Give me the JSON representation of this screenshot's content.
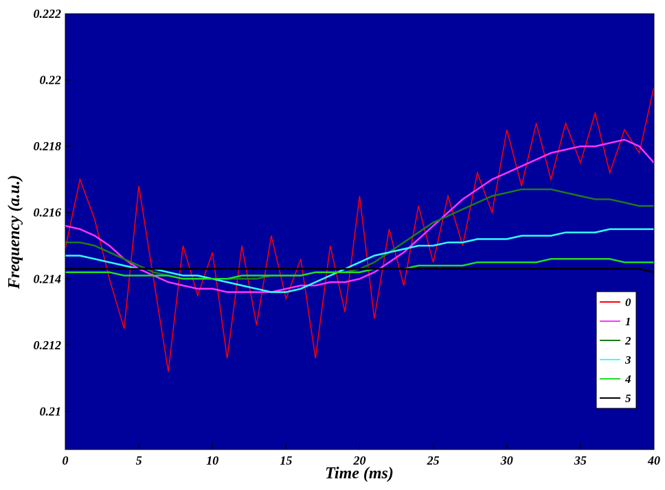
{
  "chart_data": {
    "type": "line",
    "xlabel": "Time (ms)",
    "ylabel": "Frequency (a.u.)",
    "x": [
      0,
      1,
      2,
      3,
      4,
      5,
      6,
      7,
      8,
      9,
      10,
      11,
      12,
      13,
      14,
      15,
      16,
      17,
      18,
      19,
      20,
      21,
      22,
      23,
      24,
      25,
      26,
      27,
      28,
      29,
      30,
      31,
      32,
      33,
      34,
      35,
      36,
      37,
      38,
      39,
      40
    ],
    "series": [
      {
        "name": "0",
        "color": "#ff0000",
        "values": [
          0.2149,
          0.217,
          0.2158,
          0.214,
          0.2125,
          0.2168,
          0.214,
          0.2112,
          0.215,
          0.2135,
          0.2148,
          0.2116,
          0.215,
          0.2126,
          0.2153,
          0.2134,
          0.2146,
          0.2116,
          0.215,
          0.213,
          0.2165,
          0.2128,
          0.2155,
          0.2138,
          0.2162,
          0.2145,
          0.2165,
          0.215,
          0.2172,
          0.216,
          0.2185,
          0.2168,
          0.2187,
          0.217,
          0.2187,
          0.2175,
          0.219,
          0.2172,
          0.2185,
          0.2178,
          0.2198
        ]
      },
      {
        "name": "1",
        "color": "#ff33ff",
        "values": [
          0.2156,
          0.2155,
          0.2153,
          0.215,
          0.2146,
          0.2143,
          0.2141,
          0.2139,
          0.2138,
          0.2137,
          0.2137,
          0.2136,
          0.2136,
          0.2136,
          0.2136,
          0.2137,
          0.2138,
          0.2138,
          0.2139,
          0.2139,
          0.214,
          0.2142,
          0.2145,
          0.2148,
          0.2152,
          0.2156,
          0.216,
          0.2164,
          0.2167,
          0.217,
          0.2172,
          0.2174,
          0.2176,
          0.2178,
          0.2179,
          0.218,
          0.218,
          0.2181,
          0.2182,
          0.218,
          0.2175
        ]
      },
      {
        "name": "2",
        "color": "#1e7a1e",
        "values": [
          0.2151,
          0.2151,
          0.215,
          0.2148,
          0.2146,
          0.2144,
          0.2142,
          0.2141,
          0.214,
          0.214,
          0.214,
          0.214,
          0.214,
          0.214,
          0.2141,
          0.2141,
          0.2141,
          0.2142,
          0.2142,
          0.2142,
          0.2143,
          0.2145,
          0.2148,
          0.2151,
          0.2154,
          0.2157,
          0.2159,
          0.2161,
          0.2163,
          0.2165,
          0.2166,
          0.2167,
          0.2167,
          0.2167,
          0.2166,
          0.2165,
          0.2164,
          0.2164,
          0.2163,
          0.2162,
          0.2162
        ]
      },
      {
        "name": "3",
        "color": "#33ffff",
        "values": [
          0.2147,
          0.2147,
          0.2146,
          0.2145,
          0.2144,
          0.2143,
          0.2143,
          0.2142,
          0.2141,
          0.2141,
          0.214,
          0.2139,
          0.2138,
          0.2137,
          0.2136,
          0.2136,
          0.2137,
          0.2139,
          0.2141,
          0.2143,
          0.2145,
          0.2147,
          0.2148,
          0.2149,
          0.215,
          0.215,
          0.2151,
          0.2151,
          0.2152,
          0.2152,
          0.2152,
          0.2153,
          0.2153,
          0.2153,
          0.2154,
          0.2154,
          0.2154,
          0.2155,
          0.2155,
          0.2155,
          0.2155
        ]
      },
      {
        "name": "4",
        "color": "#22dd22",
        "values": [
          0.2142,
          0.2142,
          0.2142,
          0.2142,
          0.2141,
          0.2141,
          0.2141,
          0.2141,
          0.214,
          0.214,
          0.214,
          0.214,
          0.2141,
          0.2141,
          0.2141,
          0.2141,
          0.2141,
          0.2142,
          0.2142,
          0.2142,
          0.2142,
          0.2143,
          0.2143,
          0.2143,
          0.2144,
          0.2144,
          0.2144,
          0.2144,
          0.2145,
          0.2145,
          0.2145,
          0.2145,
          0.2145,
          0.2146,
          0.2146,
          0.2146,
          0.2146,
          0.2146,
          0.2145,
          0.2145,
          0.2145
        ]
      },
      {
        "name": "5",
        "color": "#000000",
        "values": [
          0.2143,
          0.2143,
          0.2143,
          0.2143,
          0.2143,
          0.2143,
          0.2143,
          0.2143,
          0.2143,
          0.2143,
          0.2143,
          0.2143,
          0.2143,
          0.2143,
          0.2143,
          0.2143,
          0.2143,
          0.2143,
          0.2143,
          0.2143,
          0.2143,
          0.2143,
          0.2143,
          0.2143,
          0.2143,
          0.2143,
          0.2143,
          0.2143,
          0.2143,
          0.2143,
          0.2143,
          0.2143,
          0.2143,
          0.2143,
          0.2143,
          0.2143,
          0.2143,
          0.2143,
          0.2143,
          0.2143,
          0.2142
        ]
      }
    ],
    "xlim": [
      0,
      40
    ],
    "xticks": [
      0,
      5,
      10,
      15,
      20,
      25,
      30,
      35,
      40
    ],
    "ylim": [
      0.20885,
      0.222
    ],
    "yticks": [
      0.21,
      0.212,
      0.214,
      0.216,
      0.218,
      0.22,
      0.222
    ],
    "background": "#00009a",
    "legend": "lower right"
  }
}
